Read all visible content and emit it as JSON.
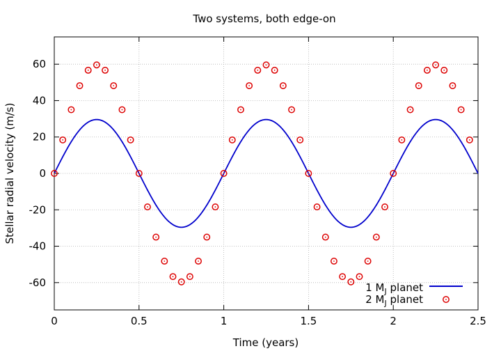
{
  "chart_data": {
    "type": "line",
    "title": "Two systems, both edge-on",
    "xlabel": "Time (years)",
    "ylabel": "Stellar radial velocity (m/s)",
    "xlim": [
      0,
      2.5
    ],
    "ylim": [
      -75,
      75
    ],
    "x_ticks": [
      "0",
      "0.5",
      "1",
      "1.5",
      "2",
      "2.5"
    ],
    "y_ticks": [
      "-60",
      "-40",
      "-20",
      "0",
      "20",
      "40",
      "60"
    ],
    "grid": true,
    "legend_position": "bottom-right",
    "series": [
      {
        "name": "1 M_J planet",
        "label_main": "1 M",
        "label_sub": "J",
        "label_rest": " planet",
        "style": "line",
        "color": "#0000cc",
        "amplitude": 29.6,
        "period_years": 1.0,
        "x_start": 0,
        "x_end": 2.5
      },
      {
        "name": "2 M_J planet",
        "label_main": "2 M",
        "label_sub": "J",
        "label_rest": " planet",
        "style": "points",
        "color": "#dd0000",
        "x": [
          0,
          0.05,
          0.1,
          0.15,
          0.2,
          0.25,
          0.3,
          0.35,
          0.4,
          0.45,
          0.5,
          0.55,
          0.6,
          0.65,
          0.7,
          0.75,
          0.8,
          0.85,
          0.9,
          0.95,
          1.0,
          1.05,
          1.1,
          1.15,
          1.2,
          1.25,
          1.3,
          1.35,
          1.4,
          1.45,
          1.5,
          1.55,
          1.6,
          1.65,
          1.7,
          1.75,
          1.8,
          1.85,
          1.9,
          1.95,
          2.0,
          2.05,
          2.1,
          2.15,
          2.2,
          2.25,
          2.3,
          2.35,
          2.4,
          2.45
        ],
        "y": [
          0,
          18.4,
          35.0,
          48.2,
          56.7,
          59.6,
          56.7,
          48.2,
          35.0,
          18.4,
          0,
          -18.4,
          -35.0,
          -48.2,
          -56.7,
          -59.6,
          -56.7,
          -48.2,
          -35.0,
          -18.4,
          0,
          18.4,
          35.0,
          48.2,
          56.7,
          59.6,
          56.7,
          48.2,
          35.0,
          18.4,
          0,
          -18.4,
          -35.0,
          -48.2,
          -56.7,
          -59.6,
          -56.7,
          -48.2,
          -35.0,
          -18.4,
          0,
          18.4,
          35.0,
          48.2,
          56.7,
          59.6,
          56.7,
          48.2,
          35.0,
          18.4
        ]
      }
    ]
  }
}
